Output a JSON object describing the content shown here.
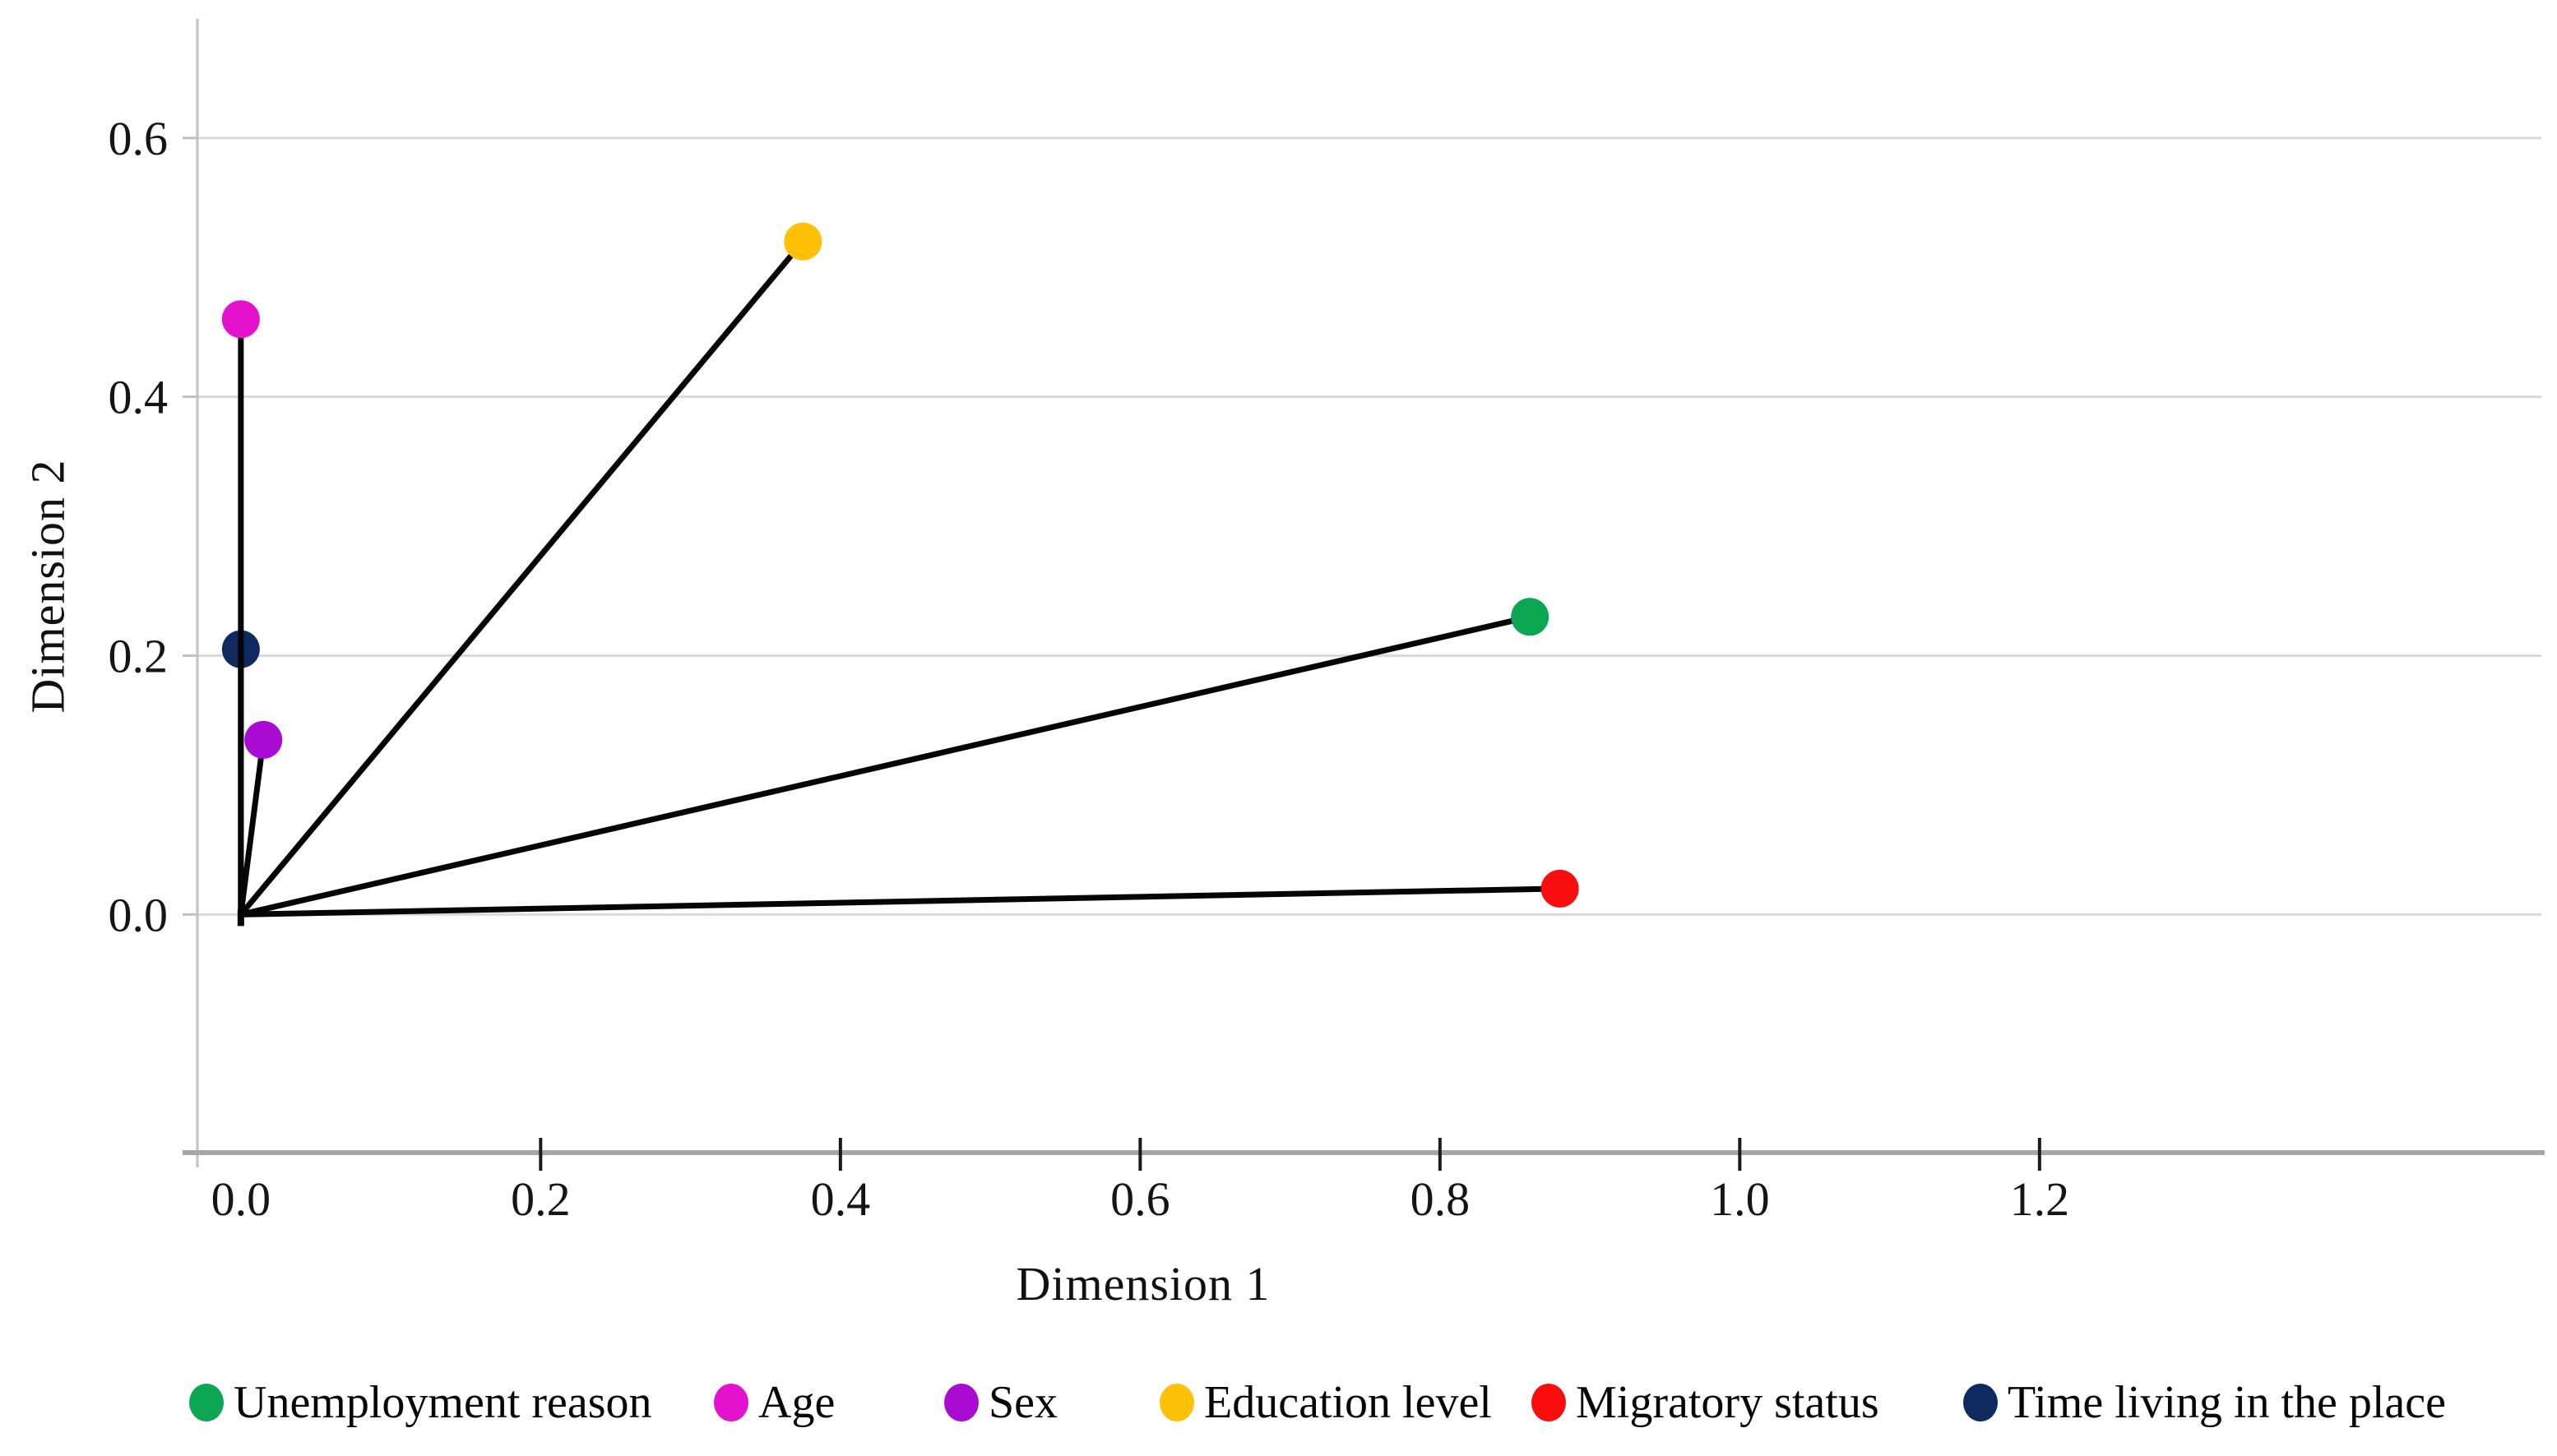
{
  "figure": {
    "background": "#ffffff",
    "text_color": "#111111",
    "gridline_color": "#d9d9d9",
    "axis_line_color": "#a6a6a6",
    "plot_border_color": "#c0c0c0",
    "vector_color": "#050505"
  },
  "chart_data": {
    "type": "scatter",
    "subtype": "vectors-from-origin",
    "title": "",
    "xlabel": "Dimension 1",
    "ylabel": "Dimension 2",
    "xlim": [
      -0.029,
      1.537
    ],
    "ylim": [
      -0.184,
      0.692
    ],
    "grid": "horizontal",
    "legend_position": "bottom",
    "x_ticks": [
      {
        "label": "0.0",
        "value": 0.0
      },
      {
        "label": "0.2",
        "value": 0.2
      },
      {
        "label": "0.4",
        "value": 0.4
      },
      {
        "label": "0.6",
        "value": 0.6
      },
      {
        "label": "0.8",
        "value": 0.8
      },
      {
        "label": "1.0",
        "value": 1.0
      },
      {
        "label": "1.2",
        "value": 1.2
      }
    ],
    "y_ticks": [
      {
        "label": "0.0",
        "value": 0.0
      },
      {
        "label": "0.2",
        "value": 0.2
      },
      {
        "label": "0.4",
        "value": 0.4
      },
      {
        "label": "0.6",
        "value": 0.6
      }
    ],
    "origin": {
      "x": 0.0,
      "y": 0.0
    },
    "series": [
      {
        "name": "Unemployment reason",
        "color": "#0aa652",
        "x": 0.86,
        "y": 0.23
      },
      {
        "name": "Age",
        "color": "#e411cd",
        "x": 0.0,
        "y": 0.46
      },
      {
        "name": "Sex",
        "color": "#a90bd2",
        "x": 0.015,
        "y": 0.135
      },
      {
        "name": "Education level",
        "color": "#ffc008",
        "x": 0.375,
        "y": 0.52
      },
      {
        "name": "Migratory status",
        "color": "#fb0d0d",
        "x": 0.88,
        "y": 0.02
      },
      {
        "name": "Time living in the place",
        "color": "#0e2a5e",
        "x": 0.0,
        "y": 0.205
      }
    ]
  }
}
